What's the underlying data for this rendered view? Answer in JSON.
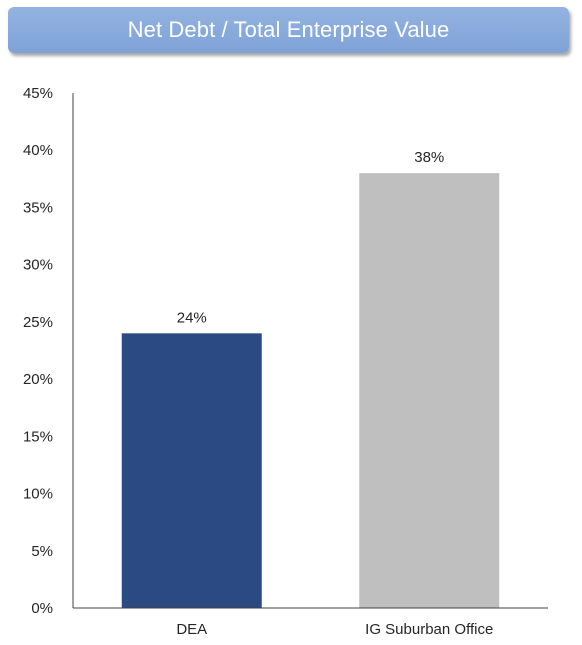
{
  "title": "Net Debt / Total Enterprise Value",
  "chart_data": {
    "type": "bar",
    "title": "Net Debt / Total Enterprise Value",
    "categories": [
      "DEA",
      "IG Suburban Office"
    ],
    "values": [
      24,
      38
    ],
    "data_labels": [
      "24%",
      "38%"
    ],
    "bar_colors": [
      "#2b4a84",
      "#bfbfbf"
    ],
    "ylim": [
      0,
      45
    ],
    "yticks": [
      0,
      5,
      10,
      15,
      20,
      25,
      30,
      35,
      40,
      45
    ],
    "ytick_labels": [
      "0%",
      "5%",
      "10%",
      "15%",
      "20%",
      "25%",
      "30%",
      "35%",
      "40%",
      "45%"
    ],
    "xlabel": "",
    "ylabel": "",
    "grid": false,
    "legend": "none"
  }
}
